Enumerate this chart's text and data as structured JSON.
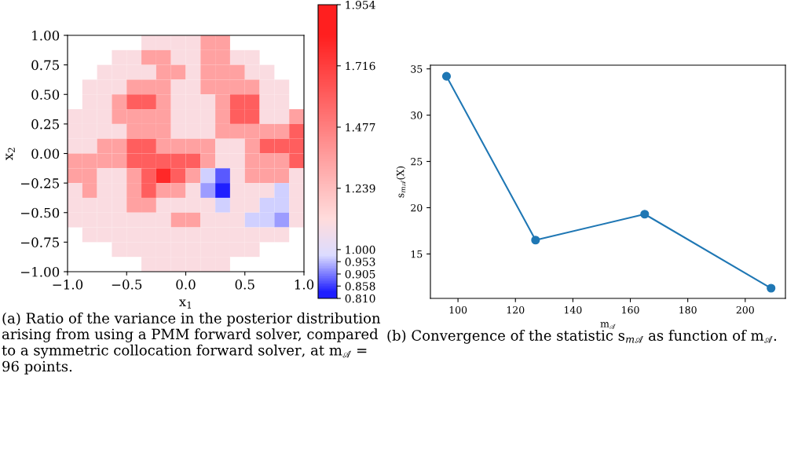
{
  "chart_data": [
    {
      "type": "heatmap",
      "xlabel": "x$_{1}$",
      "ylabel": "x$_{2}$",
      "xlim": [
        -1.0,
        1.0
      ],
      "ylim": [
        -1.0,
        1.0
      ],
      "xticks": [
        {
          "value": -1,
          "label": "−1.0"
        },
        {
          "value": -0.5,
          "label": "−0.5"
        },
        {
          "value": 0,
          "label": "0.0"
        },
        {
          "value": 0.5,
          "label": "0.5"
        },
        {
          "value": 1,
          "label": "1.0"
        }
      ],
      "yticks": [
        {
          "value": -1,
          "label": "−1.00"
        },
        {
          "value": -0.75,
          "label": "−0.75"
        },
        {
          "value": -0.5,
          "label": "−0.50"
        },
        {
          "value": -0.25,
          "label": "−0.25"
        },
        {
          "value": 0,
          "label": "0.00"
        },
        {
          "value": 0.25,
          "label": "0.25"
        },
        {
          "value": 0.5,
          "label": "0.50"
        },
        {
          "value": 0.75,
          "label": "0.75"
        },
        {
          "value": 1,
          "label": "1.00"
        }
      ],
      "clim": [
        0.81,
        1.954
      ],
      "cticks": [
        {
          "value": 0.81,
          "label": "0.810"
        },
        {
          "value": 0.858,
          "label": "0.858"
        },
        {
          "value": 0.905,
          "label": "0.905"
        },
        {
          "value": 0.953,
          "label": "0.953"
        },
        {
          "value": 1.0,
          "label": "1.000"
        },
        {
          "value": 1.239,
          "label": "1.239"
        },
        {
          "value": 1.477,
          "label": "1.477"
        },
        {
          "value": 1.716,
          "label": "1.716"
        },
        {
          "value": 1.954,
          "label": "1.954"
        }
      ],
      "colors": [
        "#1f1fff",
        "#5f5fff",
        "#9f9fff",
        "#dcdcff",
        "#ffdcdc",
        "#ff9f9f",
        "#ff5f5f",
        "#ff1f1f"
      ],
      "cells": [
        [
          null,
          null,
          null,
          null,
          null,
          1.1,
          1.1,
          1.1,
          1.1,
          1.35,
          1.35,
          null,
          null,
          null,
          null,
          null
        ],
        [
          null,
          null,
          null,
          1.1,
          1.1,
          1.35,
          1.35,
          1.1,
          1.1,
          1.35,
          1.35,
          1.1,
          1.1,
          null,
          null,
          null
        ],
        [
          null,
          null,
          1.1,
          1.1,
          1.1,
          1.1,
          1.35,
          1.35,
          1.1,
          1.35,
          1.35,
          1.35,
          1.1,
          1.1,
          null,
          null
        ],
        [
          null,
          1.1,
          1.1,
          1.1,
          1.35,
          1.35,
          1.35,
          1.1,
          1.1,
          1.35,
          1.35,
          1.35,
          1.35,
          1.1,
          1.1,
          null
        ],
        [
          null,
          1.1,
          1.1,
          1.35,
          1.6,
          1.6,
          1.35,
          1.1,
          1.1,
          1.1,
          1.35,
          1.6,
          1.6,
          1.1,
          1.1,
          null
        ],
        [
          1.1,
          1.1,
          1.1,
          1.35,
          1.35,
          1.35,
          1.35,
          1.1,
          1.1,
          1.1,
          1.35,
          1.6,
          1.6,
          1.1,
          1.1,
          1.35
        ],
        [
          1.1,
          1.1,
          1.1,
          1.1,
          1.35,
          1.35,
          1.35,
          1.1,
          1.1,
          1.1,
          1.35,
          1.35,
          1.35,
          1.35,
          1.35,
          1.6
        ],
        [
          1.1,
          1.1,
          1.35,
          1.35,
          1.6,
          1.6,
          1.35,
          1.35,
          1.35,
          1.35,
          1.1,
          1.1,
          1.35,
          1.6,
          1.6,
          1.6
        ],
        [
          1.35,
          1.35,
          1.35,
          1.35,
          1.6,
          1.6,
          1.6,
          1.6,
          1.6,
          1.35,
          1.1,
          1.1,
          1.35,
          1.35,
          1.35,
          1.6
        ],
        [
          1.35,
          1.35,
          1.1,
          1.1,
          1.35,
          1.6,
          1.8,
          1.6,
          1.35,
          0.97,
          0.88,
          1.1,
          1.35,
          1.35,
          1.35,
          1.1
        ],
        [
          1.1,
          1.35,
          1.1,
          1.1,
          1.35,
          1.6,
          1.35,
          1.35,
          1.1,
          0.93,
          0.83,
          1.1,
          1.1,
          1.1,
          0.97,
          1.1
        ],
        [
          1.1,
          1.1,
          1.1,
          1.1,
          1.35,
          1.35,
          1.1,
          1.1,
          1.1,
          1.1,
          0.97,
          1.1,
          1.1,
          0.97,
          0.97,
          1.1
        ],
        [
          1.1,
          1.1,
          1.1,
          1.1,
          1.1,
          1.1,
          1.1,
          1.35,
          1.35,
          1.1,
          1.1,
          1.1,
          0.97,
          0.97,
          0.93,
          1.1
        ],
        [
          null,
          1.1,
          1.1,
          1.1,
          1.1,
          1.1,
          1.1,
          1.1,
          1.1,
          1.1,
          1.1,
          1.1,
          1.1,
          1.1,
          1.1,
          null
        ],
        [
          null,
          null,
          null,
          1.1,
          1.1,
          1.1,
          1.1,
          1.1,
          1.1,
          1.1,
          1.1,
          1.1,
          1.1,
          null,
          null,
          null
        ],
        [
          null,
          null,
          null,
          null,
          null,
          1.1,
          1.1,
          1.1,
          1.1,
          1.1,
          1.1,
          null,
          null,
          null,
          null,
          null
        ]
      ],
      "annotations": [
        "(a) Ratio of the variance in the posterior distribution arising from using a PMM forward solver, compared to a symmetric collocation forward solver, at m$_{𝒜}$ = 96 points."
      ]
    },
    {
      "type": "line",
      "xlabel": "m$_{𝒜}$",
      "ylabel": "s$_{m𝒜}$(X)",
      "marker": "circle",
      "line_style": "solid",
      "x": [
        96,
        127,
        165,
        209
      ],
      "series": [
        {
          "color": "#1f77b4",
          "values": [
            34.2,
            16.5,
            19.3,
            11.3
          ]
        }
      ],
      "xlim": [
        90.4,
        214
      ],
      "ylim": [
        10.2,
        35.4
      ],
      "xticks": [
        100,
        120,
        140,
        160,
        180,
        200
      ],
      "yticks": [
        15,
        20,
        25,
        30,
        35
      ],
      "annotations": [
        "(b) Convergence of the statistic s$_{m𝒜}$ as function of m$_{𝒜}$."
      ]
    }
  ]
}
